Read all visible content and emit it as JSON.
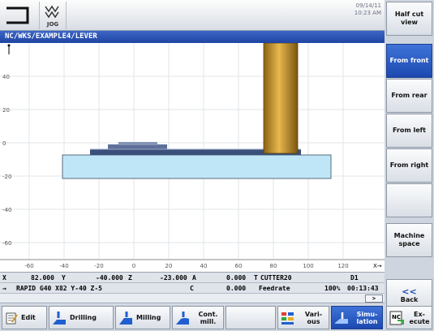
{
  "header": {
    "mode_label": "JOG",
    "date": "09/14/11",
    "time": "10:23 AM"
  },
  "path": "NC/WKS/EXAMPLE4/LEVER",
  "view": {
    "x_ticks": [
      "-60",
      "-40",
      "-20",
      "0",
      "20",
      "40",
      "60",
      "80",
      "100",
      "120"
    ],
    "y_ticks": [
      "40",
      "20",
      "0",
      "-20",
      "-40",
      "-60"
    ],
    "colors": {
      "workpiece": "#bfe6f6",
      "tool": "#c8972c",
      "part": "#3b4f7a"
    }
  },
  "status": {
    "x_label": "X",
    "x_value": "82.000",
    "y_label": "Y",
    "y_value": "-40.000",
    "z_label": "Z",
    "z_value": "-23.000",
    "a_label": "A",
    "a_value": "0.000",
    "tool_label": "T",
    "tool_value": "CUTTER20",
    "d_value": "D1",
    "block_marker": "→",
    "block": "RAPID G40 X82 Y-40 Z-5",
    "c_label": "C",
    "feed_value": "0.000",
    "feed_label": "Feedrate",
    "override": "100%",
    "elapsed": "00:13:43",
    "more_symbol": ">"
  },
  "softkeys_right": [
    {
      "label": "Half cut view",
      "active": false
    },
    {
      "label": "From front",
      "active": true
    },
    {
      "label": "From rear",
      "active": false
    },
    {
      "label": "From left",
      "active": false
    },
    {
      "label": "From right",
      "active": false
    },
    {
      "label": "",
      "active": false
    },
    {
      "label": "Machine space",
      "active": false
    },
    {
      "label": "Back",
      "active": false,
      "symbol": "<<"
    }
  ],
  "softkeys_bottom": [
    {
      "label": "Edit",
      "icon": "edit-icon"
    },
    {
      "label": "Drilling",
      "icon": "drill-icon"
    },
    {
      "label": "Milling",
      "icon": "mill-icon"
    },
    {
      "label": "Cont. mill.",
      "icon": "contour-mill-icon"
    },
    {
      "label": "",
      "icon": ""
    },
    {
      "label": "Vari- ous",
      "icon": "various-icon"
    },
    {
      "label": "Simu- lation",
      "icon": "simulation-icon",
      "active": true
    },
    {
      "label": "Ex- ecute",
      "icon": "execute-icon"
    }
  ]
}
